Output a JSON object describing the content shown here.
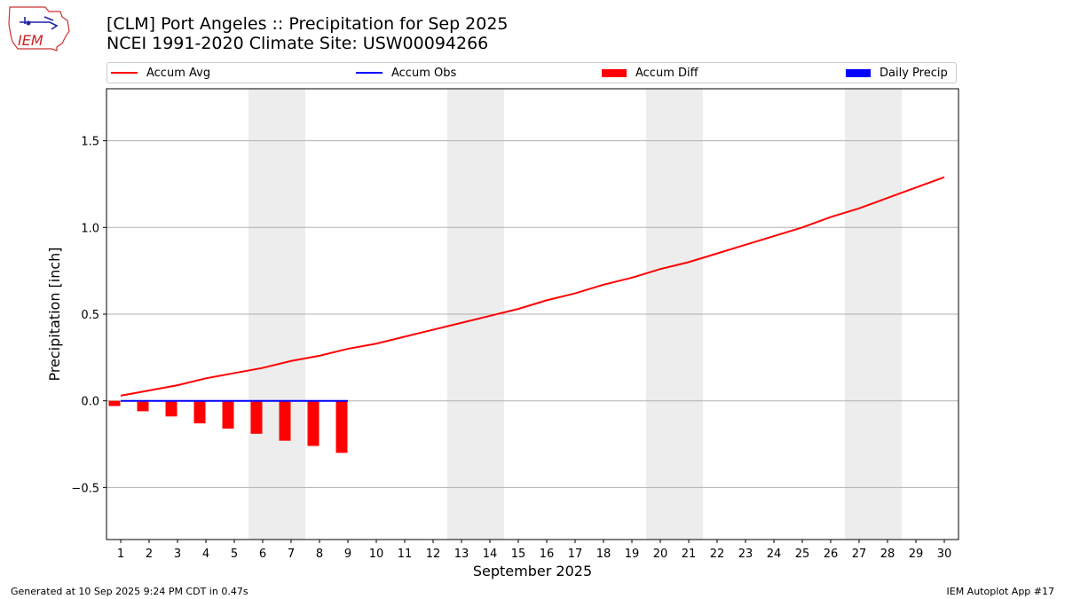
{
  "header": {
    "title_line1": "[CLM] Port Angeles :: Precipitation for Sep 2025",
    "title_line2": "NCEI 1991-2020 Climate Site: USW00094266",
    "logo_text": "IEM"
  },
  "footer": {
    "generated": "Generated at 10 Sep 2025 9:24 PM CDT in 0.47s",
    "app": "IEM Autoplot App #17"
  },
  "legend": [
    {
      "label": "Accum Avg",
      "color": "#ff0000",
      "kind": "line"
    },
    {
      "label": "Accum Obs",
      "color": "#0000ff",
      "kind": "line"
    },
    {
      "label": "Accum Diff",
      "color": "#ff0000",
      "kind": "box"
    },
    {
      "label": "Daily Precip",
      "color": "#0000ff",
      "kind": "box"
    }
  ],
  "chart_data": {
    "type": "bar",
    "xlabel": "September 2025",
    "ylabel": "Precipitation [inch]",
    "xlim": [
      0.5,
      30.5
    ],
    "ylim": [
      -0.8,
      1.8
    ],
    "yticks": [
      -0.5,
      0.0,
      0.5,
      1.0,
      1.5
    ],
    "ytick_labels": [
      "−0.5",
      "0.0",
      "0.5",
      "1.0",
      "1.5"
    ],
    "categories": [
      "1",
      "2",
      "3",
      "4",
      "5",
      "6",
      "7",
      "8",
      "9",
      "10",
      "11",
      "12",
      "13",
      "14",
      "15",
      "16",
      "17",
      "18",
      "19",
      "20",
      "21",
      "22",
      "23",
      "24",
      "25",
      "26",
      "27",
      "28",
      "29",
      "30"
    ],
    "grid": "horizontal",
    "weekend_shading": [
      [
        5.5,
        7.5
      ],
      [
        12.5,
        14.5
      ],
      [
        19.5,
        21.5
      ],
      [
        26.5,
        28.5
      ]
    ],
    "series": [
      {
        "name": "Accum Avg",
        "kind": "line",
        "color": "#ff0000",
        "x": [
          1,
          2,
          3,
          4,
          5,
          6,
          7,
          8,
          9,
          10,
          11,
          12,
          13,
          14,
          15,
          16,
          17,
          18,
          19,
          20,
          21,
          22,
          23,
          24,
          25,
          26,
          27,
          28,
          29,
          30
        ],
        "values": [
          0.03,
          0.06,
          0.09,
          0.13,
          0.16,
          0.19,
          0.23,
          0.26,
          0.3,
          0.33,
          0.37,
          0.41,
          0.45,
          0.49,
          0.53,
          0.58,
          0.62,
          0.67,
          0.71,
          0.76,
          0.8,
          0.85,
          0.9,
          0.95,
          1.0,
          1.06,
          1.11,
          1.17,
          1.23,
          1.29
        ]
      },
      {
        "name": "Accum Obs",
        "kind": "line",
        "color": "#0000ff",
        "x": [
          1,
          2,
          3,
          4,
          5,
          6,
          7,
          8,
          9
        ],
        "values": [
          0,
          0,
          0,
          0,
          0,
          0,
          0,
          0,
          0
        ]
      },
      {
        "name": "Accum Diff",
        "kind": "bar",
        "color": "#ff0000",
        "x": [
          1,
          2,
          3,
          4,
          5,
          6,
          7,
          8,
          9
        ],
        "values": [
          -0.03,
          -0.06,
          -0.09,
          -0.13,
          -0.16,
          -0.19,
          -0.23,
          -0.26,
          -0.3
        ]
      },
      {
        "name": "Daily Precip",
        "kind": "bar",
        "color": "#0000ff",
        "x": [
          1,
          2,
          3,
          4,
          5,
          6,
          7,
          8,
          9
        ],
        "values": [
          0,
          0,
          0,
          0,
          0,
          0,
          0,
          0,
          0
        ]
      }
    ]
  }
}
